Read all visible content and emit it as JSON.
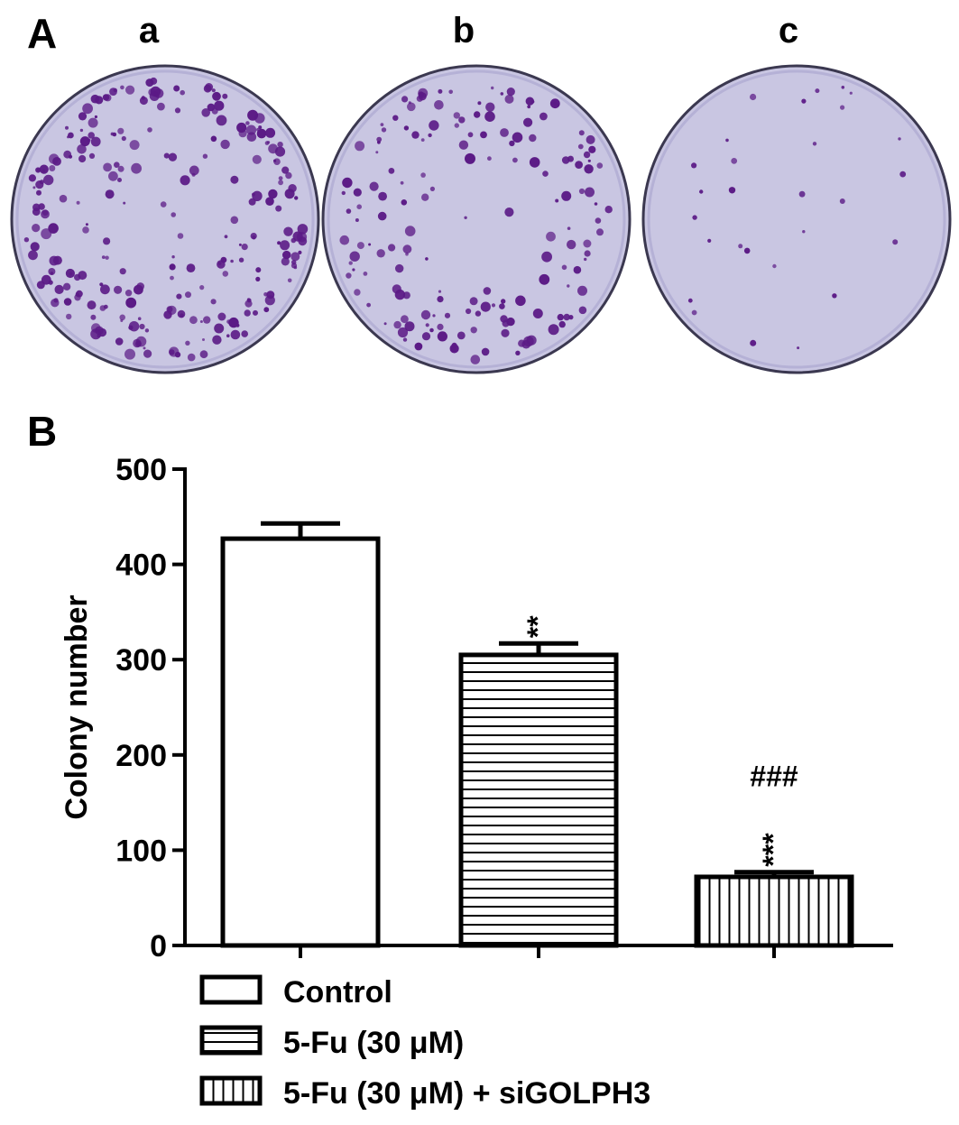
{
  "panels": {
    "a": {
      "letter": "A",
      "dish_labels": [
        "a",
        "b",
        "c"
      ]
    },
    "b": {
      "letter": "B"
    }
  },
  "colors": {
    "dish_fill": "#c9c6e2",
    "dish_edge": "#3b3850",
    "colony": "#5b1a86"
  },
  "chart_data": {
    "type": "bar",
    "categories": [
      "Control",
      "5-Fu (30 μM)",
      "5-Fu (30 μM) + siGOLPH3"
    ],
    "values": [
      427,
      305,
      72
    ],
    "errors": [
      16,
      12,
      5
    ],
    "annotations": [
      "",
      "**",
      "***"
    ],
    "annotations_top": [
      "",
      "",
      "###"
    ],
    "patterns": [
      "none",
      "horizontal-lines",
      "vertical-lines"
    ],
    "xlabel": "",
    "ylabel": "Colony number",
    "ylim": [
      0,
      500
    ],
    "yticks": [
      0,
      100,
      200,
      300,
      400,
      500
    ],
    "legend": {
      "placement": "bottom-left",
      "entries": [
        "Control",
        "5-Fu (30 μM)",
        "5-Fu (30 μM) + siGOLPH3"
      ]
    },
    "grid": false
  }
}
